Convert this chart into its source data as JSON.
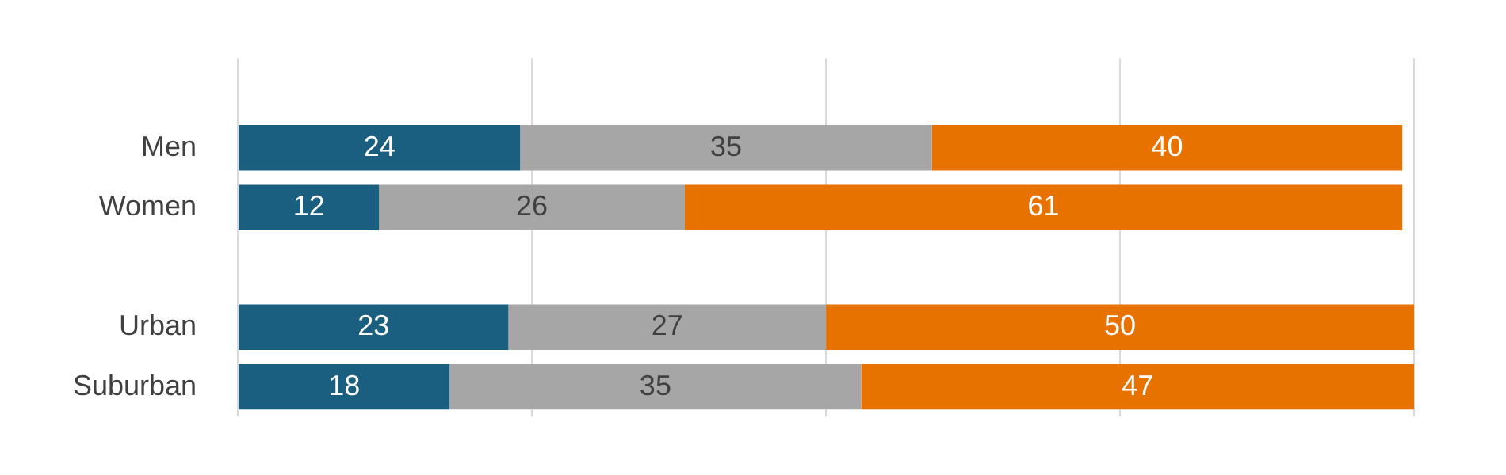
{
  "chart_data": {
    "type": "bar",
    "orientation": "horizontal",
    "stacked": true,
    "categories": [
      null,
      "Men",
      "Women",
      null,
      "Urban",
      "Suburban"
    ],
    "series": [
      {
        "color": "#1a5e80",
        "values": [
          null,
          24,
          12,
          null,
          23,
          18
        ]
      },
      {
        "color": "#a6a6a6",
        "values": [
          null,
          35,
          26,
          null,
          27,
          35
        ]
      },
      {
        "color": "#e87200",
        "values": [
          null,
          40,
          61,
          null,
          50,
          47
        ]
      }
    ],
    "xlim": [
      0,
      100
    ],
    "xticks": [
      0,
      25,
      50,
      75,
      100
    ],
    "tick_labels": "y",
    "grid": "x",
    "data_labels": true,
    "legend": false
  }
}
